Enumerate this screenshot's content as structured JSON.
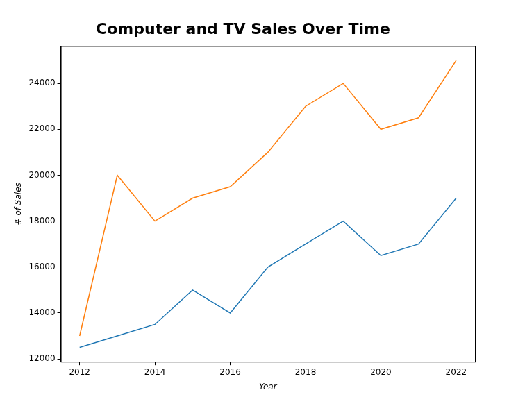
{
  "chart_data": {
    "type": "line",
    "title": "Computer and TV Sales Over Time",
    "x_label": "Year",
    "y_label": "# of Sales",
    "x": [
      2012,
      2013,
      2014,
      2015,
      2016,
      2017,
      2018,
      2019,
      2020,
      2021,
      2022
    ],
    "series": [
      {
        "color": "#1f77b4",
        "values": [
          12500,
          13000,
          13500,
          15000,
          14000,
          16000,
          17000,
          18000,
          16500,
          17000,
          19000
        ]
      },
      {
        "color": "#ff7f0e",
        "values": [
          13000,
          20000,
          18000,
          19000,
          19500,
          21000,
          23000,
          24000,
          22000,
          22500,
          25000
        ]
      }
    ],
    "xlim": [
      2011.5,
      2022.5
    ],
    "xticks": [
      2012,
      2014,
      2016,
      2018,
      2020,
      2022
    ],
    "ylim": [
      11875,
      25625
    ],
    "yticks": [
      12000,
      14000,
      16000,
      18000,
      20000,
      22000,
      24000
    ],
    "grid": false
  }
}
